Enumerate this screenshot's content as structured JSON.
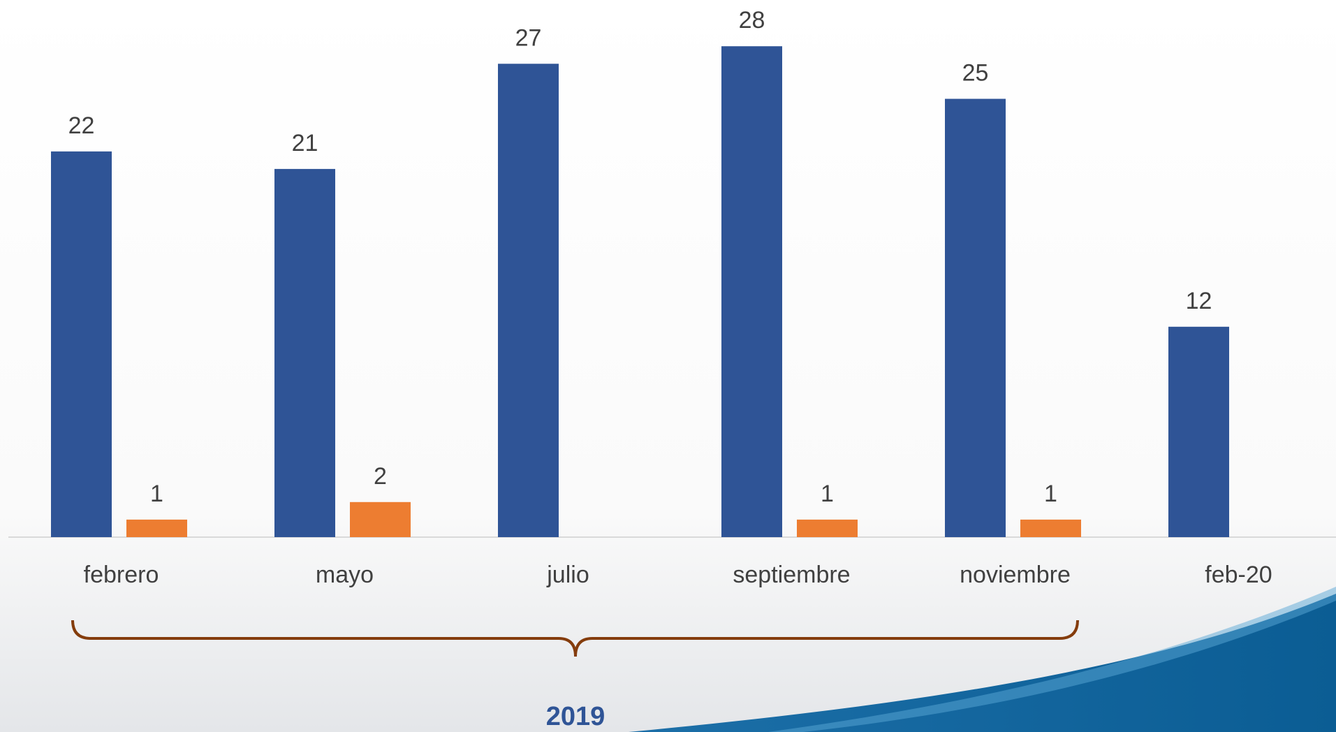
{
  "chart_data": {
    "type": "bar",
    "categories": [
      "febrero",
      "mayo",
      "julio",
      "septiembre",
      "noviembre",
      "feb-20"
    ],
    "series": [
      {
        "color": "#2f5496",
        "values": [
          22,
          21,
          27,
          28,
          25,
          12
        ]
      },
      {
        "color": "#ed7d31",
        "values": [
          1,
          2,
          null,
          1,
          1,
          null
        ]
      }
    ],
    "ylim": [
      0,
      30
    ],
    "annotation": "2019"
  }
}
